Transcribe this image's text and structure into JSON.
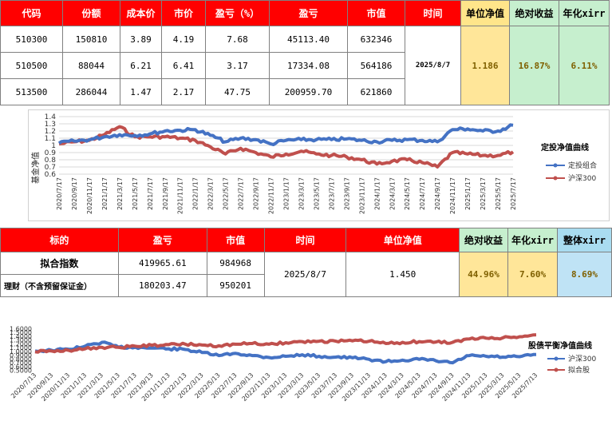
{
  "table1": {
    "headers": {
      "code": "代码",
      "shares": "份额",
      "cost": "成本价",
      "price": "市价",
      "pnl_pct": "盈亏（%）",
      "pnl": "盈亏",
      "value": "市值",
      "time": "时间",
      "nav": "单位净值",
      "abs_return": "绝对收益",
      "xirr": "年化xirr"
    },
    "rows": [
      {
        "code": "510300",
        "shares": "150810",
        "cost": "3.89",
        "price": "4.19",
        "pnl_pct": "7.68",
        "pnl": "45113.40",
        "value": "632346"
      },
      {
        "code": "510500",
        "shares": "88044",
        "cost": "6.21",
        "price": "6.41",
        "pnl_pct": "3.17",
        "pnl": "17334.08",
        "value": "564186"
      },
      {
        "code": "513500",
        "shares": "286044",
        "cost": "1.47",
        "price": "2.17",
        "pnl_pct": "47.75",
        "pnl": "200959.70",
        "value": "621860"
      }
    ],
    "date": "2025/8/7",
    "nav": "1.186",
    "abs_return": "16.87%",
    "xirr": "6.11%"
  },
  "chart1": {
    "title": "定投净值曲线",
    "ylabel": "基金净值",
    "legend": [
      "定投组合",
      "沪深300"
    ],
    "colors": {
      "s1": "#4472c4",
      "s2": "#c0504d"
    },
    "yticks": [
      "1.4",
      "1.3",
      "1.2",
      "1.1",
      "1",
      "0.9",
      "0.8",
      "0.7",
      "0.6"
    ],
    "xticks": [
      "2020/7/17",
      "2020/9/17",
      "2020/11/17",
      "2021/1/17",
      "2021/3/17",
      "2021/5/17",
      "2021/7/17",
      "2021/9/17",
      "2021/11/17",
      "2022/1/17",
      "2022/3/17",
      "2022/5/17",
      "2022/7/17",
      "2022/9/17",
      "2022/11/17",
      "2023/1/17",
      "2023/3/17",
      "2023/5/17",
      "2023/7/17",
      "2023/9/17",
      "2023/11/17",
      "2024/1/17",
      "2024/3/17",
      "2024/5/17",
      "2024/7/17",
      "2024/9/17",
      "2024/11/17",
      "2025/1/17",
      "2025/3/17",
      "2025/5/17",
      "2025/7/17"
    ]
  },
  "chart_data": [
    {
      "type": "line",
      "title": "定投净值曲线",
      "ylabel": "基金净值",
      "ylim": [
        0.6,
        1.4
      ],
      "grid": true,
      "legend_position": "right",
      "x": [
        "2020/7/17",
        "2020/9/17",
        "2020/11/17",
        "2021/1/17",
        "2021/3/17",
        "2021/5/17",
        "2021/7/17",
        "2021/9/17",
        "2021/11/17",
        "2022/1/17",
        "2022/3/17",
        "2022/5/17",
        "2022/7/17",
        "2022/9/17",
        "2022/11/17",
        "2023/1/17",
        "2023/3/17",
        "2023/5/17",
        "2023/7/17",
        "2023/9/17",
        "2023/11/17",
        "2024/1/17",
        "2024/3/17",
        "2024/5/17",
        "2024/7/17",
        "2024/9/17",
        "2024/11/17",
        "2025/1/17",
        "2025/3/17",
        "2025/5/17",
        "2025/7/17"
      ],
      "series": [
        {
          "name": "定投组合",
          "values": [
            1.03,
            1.06,
            1.08,
            1.12,
            1.15,
            1.14,
            1.16,
            1.2,
            1.21,
            1.22,
            1.14,
            1.05,
            1.1,
            1.08,
            1.02,
            1.07,
            1.08,
            1.08,
            1.08,
            1.09,
            1.07,
            1.05,
            1.07,
            1.08,
            1.07,
            1.05,
            1.22,
            1.23,
            1.2,
            1.2,
            1.28
          ]
        },
        {
          "name": "沪深300",
          "values": [
            1.02,
            1.05,
            1.07,
            1.15,
            1.26,
            1.12,
            1.12,
            1.12,
            1.1,
            1.07,
            0.98,
            0.88,
            0.96,
            0.9,
            0.84,
            0.88,
            0.92,
            0.88,
            0.86,
            0.84,
            0.8,
            0.74,
            0.78,
            0.8,
            0.76,
            0.7,
            0.9,
            0.88,
            0.86,
            0.86,
            0.91
          ]
        }
      ]
    },
    {
      "type": "line",
      "title": "股债平衡净值曲线",
      "ylim": [
        0.5,
        1.6
      ],
      "grid": false,
      "legend_position": "right",
      "x": [
        "2020/7/13",
        "2020/9/13",
        "2020/11/13",
        "2021/1/13",
        "2021/3/13",
        "2021/5/13",
        "2021/7/13",
        "2021/9/13",
        "2021/11/13",
        "2022/1/13",
        "2022/3/13",
        "2022/5/13",
        "2022/7/13",
        "2022/9/13",
        "2022/11/13",
        "2023/1/13",
        "2023/3/13",
        "2023/5/13",
        "2023/7/13",
        "2023/9/13",
        "2023/11/13",
        "2024/1/13",
        "2024/3/13",
        "2024/5/13",
        "2024/7/13",
        "2024/9/13",
        "2024/11/13",
        "2025/1/13",
        "2025/3/13",
        "2025/5/13",
        "2025/7/13"
      ],
      "series": [
        {
          "name": "沪深300",
          "values": [
            1.02,
            1.04,
            1.07,
            1.15,
            1.25,
            1.12,
            1.12,
            1.1,
            1.08,
            1.06,
            0.98,
            0.9,
            0.96,
            0.9,
            0.85,
            0.88,
            0.92,
            0.88,
            0.86,
            0.84,
            0.8,
            0.74,
            0.78,
            0.8,
            0.76,
            0.71,
            0.9,
            0.88,
            0.86,
            0.87,
            0.93
          ]
        },
        {
          "name": "拟合股",
          "values": [
            1.0,
            1.02,
            1.04,
            1.08,
            1.12,
            1.12,
            1.15,
            1.17,
            1.19,
            1.2,
            1.18,
            1.16,
            1.2,
            1.22,
            1.2,
            1.24,
            1.27,
            1.28,
            1.28,
            1.29,
            1.28,
            1.22,
            1.25,
            1.27,
            1.26,
            1.25,
            1.34,
            1.36,
            1.37,
            1.4,
            1.45
          ]
        }
      ]
    }
  ],
  "table2": {
    "headers": {
      "target": "标的",
      "pnl": "盈亏",
      "value": "市值",
      "time": "时间",
      "nav": "单位净值",
      "abs_return": "绝对收益",
      "xirr": "年化xirr",
      "total_xirr": "整体xirr"
    },
    "rows": [
      {
        "target": "拟合指数",
        "pnl": "419965.61",
        "value": "984968"
      },
      {
        "target": "理财（不含预留保证金）",
        "pnl": "180203.47",
        "value": "950201"
      }
    ],
    "date": "2025/8/7",
    "nav": "1.450",
    "abs_return": "44.96%",
    "xirr": "7.60%",
    "total_xirr": "8.69%"
  },
  "chart2": {
    "title": "股债平衡净值曲线",
    "legend": [
      "沪深300",
      "拟合股"
    ],
    "colors": {
      "s1": "#4472c4",
      "s2": "#c0504d"
    },
    "yticks": [
      "1.6000",
      "1.5000",
      "1.4000",
      "1.3000",
      "1.2000",
      "1.1000",
      "1.0000",
      "0.9000",
      "0.8000",
      "0.7000",
      "0.6000",
      "0.5000"
    ],
    "xticks": [
      "2020/7/13",
      "2020/9/13",
      "2020/11/13",
      "2021/1/13",
      "2021/3/13",
      "2021/5/13",
      "2021/7/13",
      "2021/9/13",
      "2021/11/13",
      "2022/1/13",
      "2022/3/13",
      "2022/5/13",
      "2022/7/13",
      "2022/9/13",
      "2022/11/13",
      "2023/1/13",
      "2023/3/13",
      "2023/5/13",
      "2023/7/13",
      "2023/9/13",
      "2023/11/13",
      "2024/1/13",
      "2024/3/13",
      "2024/5/13",
      "2024/7/13",
      "2024/9/13",
      "2024/11/13",
      "2025/1/13",
      "2025/3/13",
      "2025/5/13",
      "2025/7/13"
    ]
  }
}
